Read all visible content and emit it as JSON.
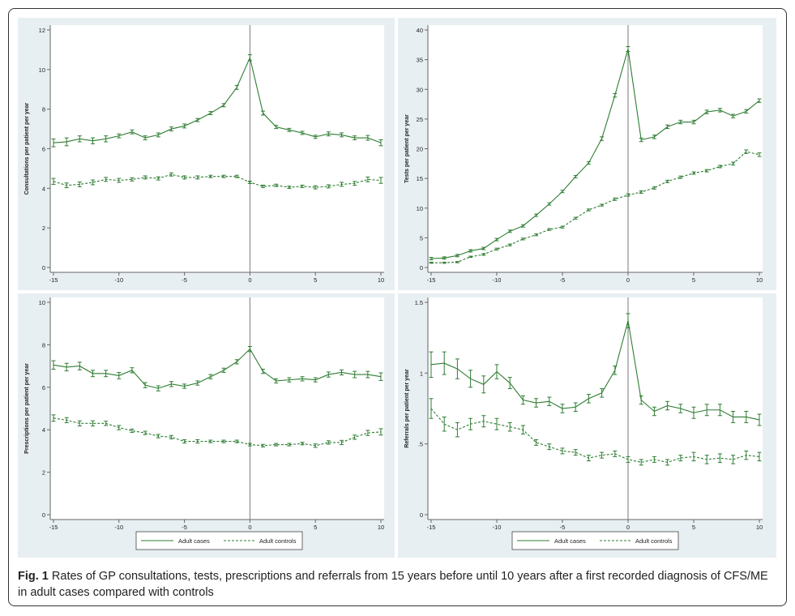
{
  "caption": {
    "label": "Fig. 1",
    "text": "Rates of GP consultations, tests, prescriptions and referrals from 15 years before until 10 years after a first recorded diagnosis of CFS/ME in adult cases compared with controls"
  },
  "colors": {
    "panel_bg": "#e8eff2",
    "plot_bg": "#ffffff",
    "series": "#2e7d32",
    "axis": "#666666",
    "vline": "#7a7a7a"
  },
  "chart_data": [
    {
      "type": "line",
      "ylabel": "Consultations per patient per year",
      "xlim": [
        -15,
        10
      ],
      "ylim": [
        0,
        12
      ],
      "xticks": [
        -15,
        -10,
        -5,
        0,
        5,
        10
      ],
      "yticks": [
        0,
        2,
        4,
        6,
        8,
        10,
        12
      ],
      "x": [
        -15,
        -14,
        -13,
        -12,
        -11,
        -10,
        -9,
        -8,
        -7,
        -6,
        -5,
        -4,
        -3,
        -2,
        -1,
        0,
        1,
        2,
        3,
        4,
        5,
        6,
        7,
        8,
        9,
        10
      ],
      "series": [
        {
          "name": "Adult cases",
          "dash": "solid",
          "values": [
            6.3,
            6.35,
            6.5,
            6.4,
            6.5,
            6.65,
            6.85,
            6.55,
            6.7,
            7.0,
            7.15,
            7.45,
            7.8,
            8.2,
            9.1,
            10.6,
            7.8,
            7.1,
            6.95,
            6.8,
            6.6,
            6.75,
            6.7,
            6.55,
            6.55,
            6.3
          ],
          "errors": [
            0.2,
            0.2,
            0.15,
            0.15,
            0.15,
            0.1,
            0.1,
            0.1,
            0.1,
            0.1,
            0.1,
            0.08,
            0.08,
            0.08,
            0.1,
            0.15,
            0.1,
            0.08,
            0.08,
            0.08,
            0.08,
            0.1,
            0.1,
            0.1,
            0.12,
            0.15
          ]
        },
        {
          "name": "Adult controls",
          "dash": "dashed",
          "values": [
            4.35,
            4.15,
            4.2,
            4.3,
            4.45,
            4.4,
            4.45,
            4.55,
            4.5,
            4.7,
            4.55,
            4.55,
            4.6,
            4.6,
            4.6,
            4.3,
            4.1,
            4.15,
            4.05,
            4.1,
            4.05,
            4.1,
            4.2,
            4.25,
            4.45,
            4.4
          ],
          "errors": [
            0.15,
            0.12,
            0.12,
            0.12,
            0.1,
            0.1,
            0.08,
            0.08,
            0.08,
            0.08,
            0.08,
            0.08,
            0.06,
            0.06,
            0.06,
            0.06,
            0.06,
            0.06,
            0.06,
            0.06,
            0.08,
            0.08,
            0.1,
            0.1,
            0.12,
            0.15
          ]
        }
      ]
    },
    {
      "type": "line",
      "ylabel": "Tests per patient per year",
      "xlim": [
        -15,
        10
      ],
      "ylim": [
        0,
        40
      ],
      "xticks": [
        -15,
        -10,
        -5,
        0,
        5,
        10
      ],
      "yticks": [
        0,
        5,
        10,
        15,
        20,
        25,
        30,
        35,
        40
      ],
      "x": [
        -15,
        -14,
        -13,
        -12,
        -11,
        -10,
        -9,
        -8,
        -7,
        -6,
        -5,
        -4,
        -3,
        -2,
        -1,
        0,
        1,
        2,
        3,
        4,
        5,
        6,
        7,
        8,
        9,
        10
      ],
      "series": [
        {
          "name": "Adult cases",
          "dash": "solid",
          "values": [
            1.5,
            1.6,
            2.0,
            2.8,
            3.2,
            4.7,
            6.1,
            7.0,
            8.8,
            10.7,
            12.8,
            15.3,
            17.6,
            21.7,
            29.0,
            36.8,
            21.5,
            22.0,
            23.7,
            24.5,
            24.5,
            26.2,
            26.5,
            25.5,
            26.3,
            28.1
          ],
          "errors": [
            0.2,
            0.2,
            0.2,
            0.2,
            0.2,
            0.2,
            0.2,
            0.2,
            0.2,
            0.2,
            0.2,
            0.2,
            0.2,
            0.3,
            0.3,
            0.4,
            0.3,
            0.3,
            0.3,
            0.3,
            0.3,
            0.3,
            0.3,
            0.3,
            0.3,
            0.3
          ]
        },
        {
          "name": "Adult controls",
          "dash": "dashed",
          "values": [
            0.8,
            0.8,
            0.9,
            1.8,
            2.2,
            3.1,
            3.8,
            4.8,
            5.5,
            6.4,
            6.8,
            8.3,
            9.7,
            10.5,
            11.5,
            12.2,
            12.7,
            13.4,
            14.5,
            15.2,
            15.9,
            16.3,
            17.0,
            17.5,
            19.5,
            19.0
          ],
          "errors": [
            0.1,
            0.1,
            0.1,
            0.1,
            0.15,
            0.15,
            0.15,
            0.15,
            0.15,
            0.15,
            0.15,
            0.15,
            0.15,
            0.15,
            0.2,
            0.2,
            0.2,
            0.2,
            0.2,
            0.2,
            0.2,
            0.2,
            0.2,
            0.25,
            0.3,
            0.3
          ]
        }
      ]
    },
    {
      "type": "line",
      "ylabel": "Prescriptions per patient per year",
      "xlim": [
        -15,
        10
      ],
      "ylim": [
        0,
        10
      ],
      "xticks": [
        -15,
        -10,
        -5,
        0,
        5,
        10
      ],
      "yticks": [
        0,
        2,
        4,
        6,
        8,
        10
      ],
      "x": [
        -15,
        -14,
        -13,
        -12,
        -11,
        -10,
        -9,
        -8,
        -7,
        -6,
        -5,
        -4,
        -3,
        -2,
        -1,
        0,
        1,
        2,
        3,
        4,
        5,
        6,
        7,
        8,
        9,
        10
      ],
      "series": [
        {
          "name": "Adult cases",
          "dash": "solid",
          "values": [
            7.05,
            6.95,
            7.0,
            6.65,
            6.65,
            6.55,
            6.8,
            6.1,
            5.95,
            6.15,
            6.05,
            6.2,
            6.5,
            6.8,
            7.2,
            7.8,
            6.75,
            6.3,
            6.35,
            6.4,
            6.35,
            6.6,
            6.7,
            6.6,
            6.6,
            6.5
          ],
          "errors": [
            0.2,
            0.18,
            0.18,
            0.15,
            0.15,
            0.15,
            0.12,
            0.12,
            0.12,
            0.12,
            0.1,
            0.1,
            0.1,
            0.1,
            0.1,
            0.12,
            0.1,
            0.1,
            0.1,
            0.1,
            0.1,
            0.12,
            0.12,
            0.15,
            0.15,
            0.18
          ]
        },
        {
          "name": "Adult controls",
          "dash": "dashed",
          "values": [
            4.55,
            4.45,
            4.3,
            4.3,
            4.3,
            4.1,
            3.95,
            3.85,
            3.7,
            3.65,
            3.45,
            3.45,
            3.45,
            3.45,
            3.45,
            3.3,
            3.25,
            3.3,
            3.3,
            3.35,
            3.25,
            3.4,
            3.4,
            3.65,
            3.85,
            3.9
          ],
          "errors": [
            0.15,
            0.12,
            0.12,
            0.12,
            0.1,
            0.1,
            0.08,
            0.08,
            0.08,
            0.08,
            0.08,
            0.08,
            0.06,
            0.06,
            0.06,
            0.06,
            0.06,
            0.06,
            0.06,
            0.06,
            0.08,
            0.08,
            0.1,
            0.1,
            0.12,
            0.15
          ]
        }
      ]
    },
    {
      "type": "line",
      "ylabel": "Referrals per patient per year",
      "xlim": [
        -15,
        10
      ],
      "ylim": [
        0,
        1.5
      ],
      "xticks": [
        -15,
        -10,
        -5,
        0,
        5,
        10
      ],
      "yticks": [
        0,
        0.5,
        1,
        1.5
      ],
      "ytick_labels": [
        "0",
        ".5",
        "1",
        "1.5"
      ],
      "x": [
        -15,
        -14,
        -13,
        -12,
        -11,
        -10,
        -9,
        -8,
        -7,
        -6,
        -5,
        -4,
        -3,
        -2,
        -1,
        0,
        1,
        2,
        3,
        4,
        5,
        6,
        7,
        8,
        9,
        10
      ],
      "series": [
        {
          "name": "Adult cases",
          "dash": "solid",
          "values": [
            1.06,
            1.07,
            1.03,
            0.96,
            0.92,
            1.01,
            0.93,
            0.81,
            0.79,
            0.8,
            0.75,
            0.76,
            0.82,
            0.86,
            1.02,
            1.37,
            0.81,
            0.73,
            0.77,
            0.75,
            0.72,
            0.74,
            0.74,
            0.69,
            0.69,
            0.67
          ],
          "errors": [
            0.09,
            0.08,
            0.07,
            0.06,
            0.06,
            0.05,
            0.04,
            0.03,
            0.03,
            0.03,
            0.03,
            0.03,
            0.03,
            0.03,
            0.03,
            0.05,
            0.03,
            0.03,
            0.03,
            0.03,
            0.04,
            0.04,
            0.04,
            0.04,
            0.04,
            0.04
          ]
        },
        {
          "name": "Adult controls",
          "dash": "dashed",
          "values": [
            0.75,
            0.64,
            0.6,
            0.64,
            0.66,
            0.64,
            0.62,
            0.6,
            0.51,
            0.48,
            0.45,
            0.44,
            0.4,
            0.42,
            0.43,
            0.39,
            0.37,
            0.39,
            0.37,
            0.4,
            0.41,
            0.39,
            0.4,
            0.39,
            0.42,
            0.41
          ],
          "errors": [
            0.07,
            0.05,
            0.05,
            0.04,
            0.04,
            0.04,
            0.03,
            0.03,
            0.02,
            0.02,
            0.02,
            0.02,
            0.02,
            0.02,
            0.02,
            0.02,
            0.02,
            0.02,
            0.02,
            0.02,
            0.03,
            0.03,
            0.03,
            0.03,
            0.03,
            0.03
          ]
        }
      ]
    }
  ],
  "legend": {
    "cases": "Adult cases",
    "controls": "Adult controls"
  }
}
